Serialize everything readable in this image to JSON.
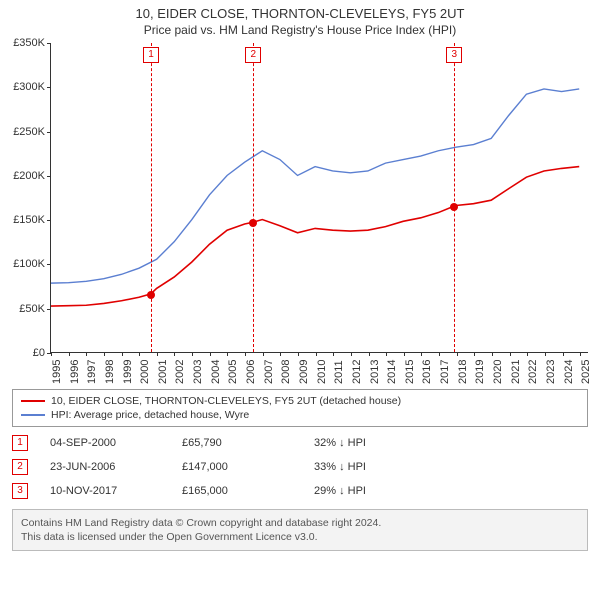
{
  "title_line1": "10, EIDER CLOSE, THORNTON-CLEVELEYS, FY5 2UT",
  "title_line2": "Price paid vs. HM Land Registry's House Price Index (HPI)",
  "chart": {
    "type": "line",
    "background_color": "#ffffff",
    "axis_color": "#333333",
    "tick_fontsize": 11,
    "ylim": [
      0,
      350000
    ],
    "ytick_step": 50000,
    "yticklabels": [
      "£0",
      "£50K",
      "£100K",
      "£150K",
      "£200K",
      "£250K",
      "£300K",
      "£350K"
    ],
    "xlim": [
      1995,
      2025.5
    ],
    "xticks": [
      1995,
      1996,
      1997,
      1998,
      1999,
      2000,
      2001,
      2002,
      2003,
      2004,
      2005,
      2006,
      2007,
      2008,
      2009,
      2010,
      2011,
      2012,
      2013,
      2014,
      2015,
      2016,
      2017,
      2018,
      2019,
      2020,
      2021,
      2022,
      2023,
      2024,
      2025
    ],
    "series": [
      {
        "id": "property",
        "label": "10, EIDER CLOSE, THORNTON-CLEVELEYS, FY5 2UT (detached house)",
        "color": "#e00000",
        "line_width": 1.6,
        "points": [
          [
            1995,
            52000
          ],
          [
            1996,
            52500
          ],
          [
            1997,
            53000
          ],
          [
            1998,
            55000
          ],
          [
            1999,
            58000
          ],
          [
            2000,
            62000
          ],
          [
            2000.67,
            65790
          ],
          [
            2001,
            72000
          ],
          [
            2002,
            85000
          ],
          [
            2003,
            102000
          ],
          [
            2004,
            122000
          ],
          [
            2005,
            138000
          ],
          [
            2006,
            145000
          ],
          [
            2006.47,
            147000
          ],
          [
            2007,
            150000
          ],
          [
            2008,
            143000
          ],
          [
            2009,
            135000
          ],
          [
            2010,
            140000
          ],
          [
            2011,
            138000
          ],
          [
            2012,
            137000
          ],
          [
            2013,
            138000
          ],
          [
            2014,
            142000
          ],
          [
            2015,
            148000
          ],
          [
            2016,
            152000
          ],
          [
            2017,
            158000
          ],
          [
            2017.86,
            165000
          ],
          [
            2018,
            166000
          ],
          [
            2019,
            168000
          ],
          [
            2020,
            172000
          ],
          [
            2021,
            185000
          ],
          [
            2022,
            198000
          ],
          [
            2023,
            205000
          ],
          [
            2024,
            208000
          ],
          [
            2025,
            210000
          ]
        ]
      },
      {
        "id": "hpi",
        "label": "HPI: Average price, detached house, Wyre",
        "color": "#5b7fd1",
        "line_width": 1.4,
        "points": [
          [
            1995,
            78000
          ],
          [
            1996,
            78500
          ],
          [
            1997,
            80000
          ],
          [
            1998,
            83000
          ],
          [
            1999,
            88000
          ],
          [
            2000,
            95000
          ],
          [
            2001,
            105000
          ],
          [
            2002,
            125000
          ],
          [
            2003,
            150000
          ],
          [
            2004,
            178000
          ],
          [
            2005,
            200000
          ],
          [
            2006,
            215000
          ],
          [
            2007,
            228000
          ],
          [
            2008,
            218000
          ],
          [
            2009,
            200000
          ],
          [
            2010,
            210000
          ],
          [
            2011,
            205000
          ],
          [
            2012,
            203000
          ],
          [
            2013,
            205000
          ],
          [
            2014,
            214000
          ],
          [
            2015,
            218000
          ],
          [
            2016,
            222000
          ],
          [
            2017,
            228000
          ],
          [
            2018,
            232000
          ],
          [
            2019,
            235000
          ],
          [
            2020,
            242000
          ],
          [
            2021,
            268000
          ],
          [
            2022,
            292000
          ],
          [
            2023,
            298000
          ],
          [
            2024,
            295000
          ],
          [
            2025,
            298000
          ]
        ]
      }
    ],
    "sale_markers": [
      {
        "n": "1",
        "x": 2000.67,
        "y": 65790
      },
      {
        "n": "2",
        "x": 2006.47,
        "y": 147000
      },
      {
        "n": "3",
        "x": 2017.86,
        "y": 165000
      }
    ],
    "marker_line_color": "#e00000",
    "marker_box_border": "#e00000"
  },
  "legend": {
    "border_color": "#999999",
    "fontsize": 10.5,
    "items": [
      {
        "color": "#e00000",
        "label": "10, EIDER CLOSE, THORNTON-CLEVELEYS, FY5 2UT (detached house)"
      },
      {
        "color": "#5b7fd1",
        "label": "HPI: Average price, detached house, Wyre"
      }
    ]
  },
  "events": [
    {
      "n": "1",
      "date": "04-SEP-2000",
      "price": "£65,790",
      "delta": "32% ↓ HPI"
    },
    {
      "n": "2",
      "date": "23-JUN-2006",
      "price": "£147,000",
      "delta": "33% ↓ HPI"
    },
    {
      "n": "3",
      "date": "10-NOV-2017",
      "price": "£165,000",
      "delta": "29% ↓ HPI"
    }
  ],
  "footer_line1": "Contains HM Land Registry data © Crown copyright and database right 2024.",
  "footer_line2": "This data is licensed under the Open Government Licence v3.0.",
  "footer_bg": "#f3f3f3",
  "footer_border": "#bbbbbb"
}
